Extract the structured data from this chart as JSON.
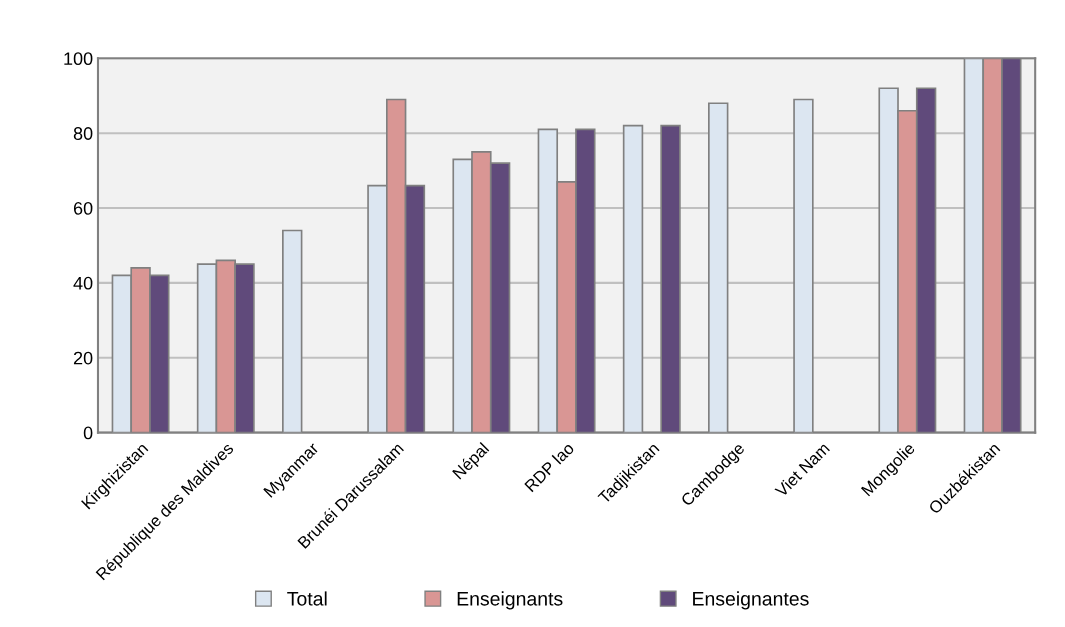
{
  "chart_data": {
    "type": "bar",
    "categories": [
      "Kirghizistan",
      "République des Maldives",
      "Myanmar",
      "Brunéi Darussalam",
      "Népal",
      "RDP lao",
      "Tadjikistan",
      "Cambodge",
      "Viet Nam",
      "Mongolie",
      "Ouzbékistan"
    ],
    "series": [
      {
        "name": "Total",
        "color": "#dce6f1",
        "values": [
          42,
          45,
          54,
          66,
          73,
          81,
          82,
          88,
          89,
          92,
          100
        ]
      },
      {
        "name": "Enseignants",
        "color": "#d99694",
        "values": [
          44,
          46,
          null,
          89,
          75,
          67,
          null,
          null,
          null,
          86,
          100
        ]
      },
      {
        "name": "Enseignantes",
        "color": "#604a7b",
        "values": [
          42,
          45,
          null,
          66,
          72,
          81,
          82,
          null,
          null,
          92,
          100
        ]
      }
    ],
    "ylim": [
      0,
      100
    ],
    "yticks": [
      0,
      20,
      40,
      60,
      80,
      100
    ],
    "grid": "y",
    "legend": "bottom"
  }
}
